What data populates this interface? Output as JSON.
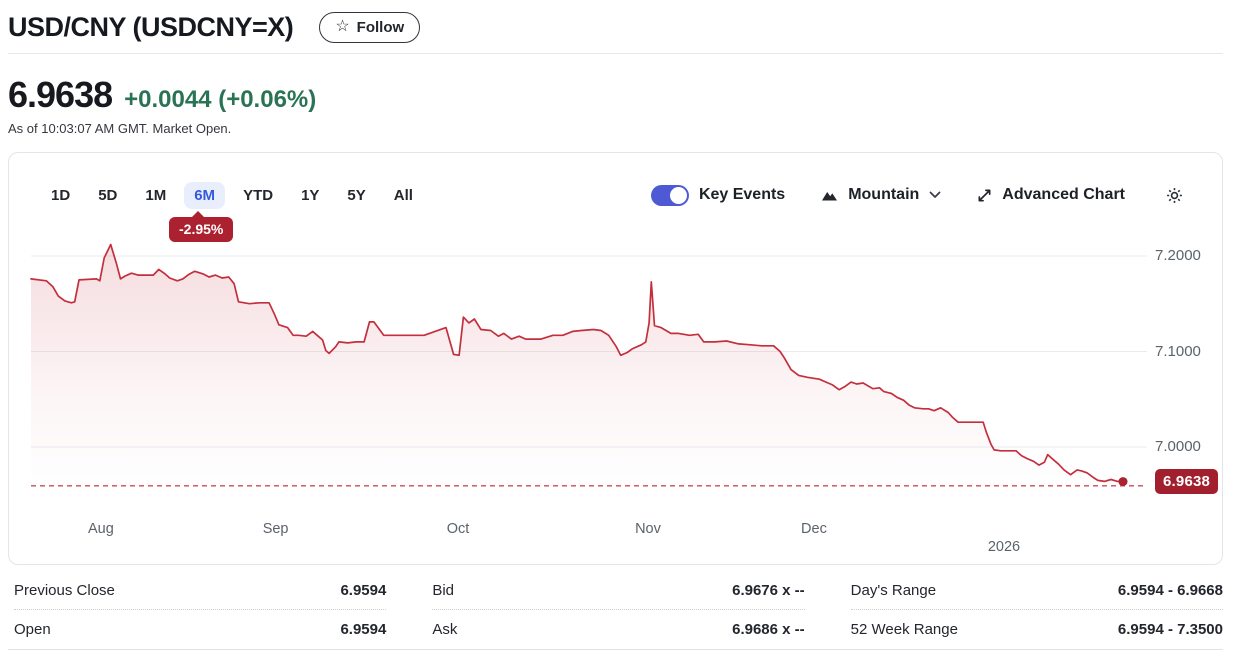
{
  "header": {
    "title": "USD/CNY (USDCNY=X)",
    "star_icon": "☆",
    "follow_label": "Follow"
  },
  "quote": {
    "price": "6.9638",
    "change": "+0.0044",
    "change_percent": "(+0.06%)",
    "change_color": "#2a7354",
    "as_of": "As of 10:03:07 AM GMT. Market Open."
  },
  "toolbar": {
    "ranges": [
      {
        "label": "1D",
        "selected": false
      },
      {
        "label": "5D",
        "selected": false
      },
      {
        "label": "1M",
        "selected": false
      },
      {
        "label": "6M",
        "selected": true
      },
      {
        "label": "YTD",
        "selected": false
      },
      {
        "label": "1Y",
        "selected": false
      },
      {
        "label": "5Y",
        "selected": false
      },
      {
        "label": "All",
        "selected": false
      }
    ],
    "selected_range_change": "-2.95%",
    "key_events_label": "Key Events",
    "key_events_on": true,
    "chart_type_label": "Mountain",
    "advanced_chart_label": "Advanced Chart",
    "icons": {
      "chart_type": "mountain-icon",
      "advanced": "expand-diagonal-icon",
      "settings": "gear-icon"
    }
  },
  "chart_data": {
    "type": "area",
    "title": "USD/CNY 6 month price chart",
    "line_color": "#c42f3d",
    "badge_color": "#a21f2e",
    "y_ticks": [
      "7.2000",
      "7.1000",
      "7.0000"
    ],
    "y_tick_values": [
      7.2,
      7.1,
      7.0
    ],
    "ylim": [
      6.93,
      7.23
    ],
    "grid": true,
    "prev_close_value": 6.9594,
    "last_value": 6.9638,
    "last_label": "6.9638",
    "x_labels": [
      {
        "label": "Aug",
        "f": 0.064,
        "row": 1
      },
      {
        "label": "Sep",
        "f": 0.224,
        "row": 1
      },
      {
        "label": "Oct",
        "f": 0.391,
        "row": 1
      },
      {
        "label": "Nov",
        "f": 0.565,
        "row": 1
      },
      {
        "label": "Dec",
        "f": 0.717,
        "row": 1
      },
      {
        "label": "2026",
        "f": 0.891,
        "row": 2
      }
    ],
    "points": [
      [
        0.0,
        7.176
      ],
      [
        0.014,
        7.174
      ],
      [
        0.02,
        7.168
      ],
      [
        0.025,
        7.158
      ],
      [
        0.031,
        7.153
      ],
      [
        0.037,
        7.151
      ],
      [
        0.04,
        7.152
      ],
      [
        0.044,
        7.175
      ],
      [
        0.06,
        7.176
      ],
      [
        0.063,
        7.174
      ],
      [
        0.067,
        7.198
      ],
      [
        0.073,
        7.212
      ],
      [
        0.078,
        7.193
      ],
      [
        0.082,
        7.176
      ],
      [
        0.086,
        7.179
      ],
      [
        0.092,
        7.182
      ],
      [
        0.098,
        7.18
      ],
      [
        0.105,
        7.18
      ],
      [
        0.112,
        7.18
      ],
      [
        0.117,
        7.186
      ],
      [
        0.123,
        7.181
      ],
      [
        0.127,
        7.177
      ],
      [
        0.134,
        7.174
      ],
      [
        0.139,
        7.176
      ],
      [
        0.145,
        7.181
      ],
      [
        0.15,
        7.184
      ],
      [
        0.158,
        7.181
      ],
      [
        0.163,
        7.178
      ],
      [
        0.169,
        7.18
      ],
      [
        0.175,
        7.177
      ],
      [
        0.181,
        7.178
      ],
      [
        0.186,
        7.171
      ],
      [
        0.19,
        7.152
      ],
      [
        0.2,
        7.15
      ],
      [
        0.209,
        7.151
      ],
      [
        0.218,
        7.151
      ],
      [
        0.223,
        7.139
      ],
      [
        0.227,
        7.128
      ],
      [
        0.235,
        7.125
      ],
      [
        0.24,
        7.117
      ],
      [
        0.245,
        7.117
      ],
      [
        0.252,
        7.116
      ],
      [
        0.258,
        7.121
      ],
      [
        0.261,
        7.118
      ],
      [
        0.267,
        7.112
      ],
      [
        0.27,
        7.101
      ],
      [
        0.273,
        7.098
      ],
      [
        0.279,
        7.105
      ],
      [
        0.282,
        7.11
      ],
      [
        0.29,
        7.109
      ],
      [
        0.298,
        7.11
      ],
      [
        0.305,
        7.11
      ],
      [
        0.31,
        7.131
      ],
      [
        0.314,
        7.131
      ],
      [
        0.323,
        7.117
      ],
      [
        0.334,
        7.117
      ],
      [
        0.36,
        7.117
      ],
      [
        0.38,
        7.125
      ],
      [
        0.387,
        7.097
      ],
      [
        0.392,
        7.096
      ],
      [
        0.396,
        7.136
      ],
      [
        0.401,
        7.13
      ],
      [
        0.406,
        7.134
      ],
      [
        0.412,
        7.123
      ],
      [
        0.421,
        7.122
      ],
      [
        0.428,
        7.116
      ],
      [
        0.433,
        7.119
      ],
      [
        0.44,
        7.113
      ],
      [
        0.447,
        7.116
      ],
      [
        0.453,
        7.113
      ],
      [
        0.467,
        7.113
      ],
      [
        0.478,
        7.117
      ],
      [
        0.487,
        7.117
      ],
      [
        0.496,
        7.121
      ],
      [
        0.504,
        7.122
      ],
      [
        0.515,
        7.123
      ],
      [
        0.522,
        7.122
      ],
      [
        0.529,
        7.117
      ],
      [
        0.536,
        7.105
      ],
      [
        0.54,
        7.096
      ],
      [
        0.546,
        7.099
      ],
      [
        0.551,
        7.103
      ],
      [
        0.559,
        7.107
      ],
      [
        0.563,
        7.11
      ],
      [
        0.566,
        7.13
      ],
      [
        0.568,
        7.173
      ],
      [
        0.571,
        7.127
      ],
      [
        0.577,
        7.125
      ],
      [
        0.586,
        7.119
      ],
      [
        0.593,
        7.119
      ],
      [
        0.603,
        7.117
      ],
      [
        0.611,
        7.118
      ],
      [
        0.616,
        7.11
      ],
      [
        0.626,
        7.11
      ],
      [
        0.637,
        7.111
      ],
      [
        0.648,
        7.108
      ],
      [
        0.659,
        7.107
      ],
      [
        0.669,
        7.106
      ],
      [
        0.68,
        7.106
      ],
      [
        0.686,
        7.1
      ],
      [
        0.69,
        7.093
      ],
      [
        0.696,
        7.081
      ],
      [
        0.703,
        7.075
      ],
      [
        0.711,
        7.073
      ],
      [
        0.716,
        7.072
      ],
      [
        0.722,
        7.071
      ],
      [
        0.728,
        7.068
      ],
      [
        0.734,
        7.065
      ],
      [
        0.74,
        7.06
      ],
      [
        0.745,
        7.063
      ],
      [
        0.751,
        7.068
      ],
      [
        0.756,
        7.066
      ],
      [
        0.762,
        7.067
      ],
      [
        0.771,
        7.061
      ],
      [
        0.777,
        7.062
      ],
      [
        0.781,
        7.058
      ],
      [
        0.788,
        7.056
      ],
      [
        0.793,
        7.052
      ],
      [
        0.799,
        7.049
      ],
      [
        0.804,
        7.044
      ],
      [
        0.809,
        7.041
      ],
      [
        0.817,
        7.04
      ],
      [
        0.822,
        7.04
      ],
      [
        0.827,
        7.038
      ],
      [
        0.833,
        7.041
      ],
      [
        0.84,
        7.036
      ],
      [
        0.844,
        7.031
      ],
      [
        0.849,
        7.026
      ],
      [
        0.856,
        7.026
      ],
      [
        0.865,
        7.026
      ],
      [
        0.872,
        7.026
      ],
      [
        0.875,
        7.015
      ],
      [
        0.879,
        7.003
      ],
      [
        0.882,
        6.997
      ],
      [
        0.888,
        6.996
      ],
      [
        0.896,
        6.996
      ],
      [
        0.902,
        6.996
      ],
      [
        0.907,
        6.991
      ],
      [
        0.912,
        6.988
      ],
      [
        0.918,
        6.985
      ],
      [
        0.923,
        6.981
      ],
      [
        0.928,
        6.984
      ],
      [
        0.931,
        6.992
      ],
      [
        0.935,
        6.988
      ],
      [
        0.941,
        6.982
      ],
      [
        0.946,
        6.976
      ],
      [
        0.952,
        6.971
      ],
      [
        0.958,
        6.976
      ],
      [
        0.962,
        6.975
      ],
      [
        0.967,
        6.973
      ],
      [
        0.973,
        6.968
      ],
      [
        0.977,
        6.965
      ],
      [
        0.983,
        6.964
      ],
      [
        0.989,
        6.966
      ],
      [
        0.995,
        6.964
      ],
      [
        1.0,
        6.9638
      ]
    ]
  },
  "stats": {
    "columns": [
      [
        {
          "label": "Previous Close",
          "value": "6.9594"
        },
        {
          "label": "Open",
          "value": "6.9594"
        }
      ],
      [
        {
          "label": "Bid",
          "value": "6.9676 x --"
        },
        {
          "label": "Ask",
          "value": "6.9686 x --"
        }
      ],
      [
        {
          "label": "Day's Range",
          "value": "6.9594 - 6.9668"
        },
        {
          "label": "52 Week Range",
          "value": "6.9594 - 7.3500"
        }
      ]
    ]
  }
}
